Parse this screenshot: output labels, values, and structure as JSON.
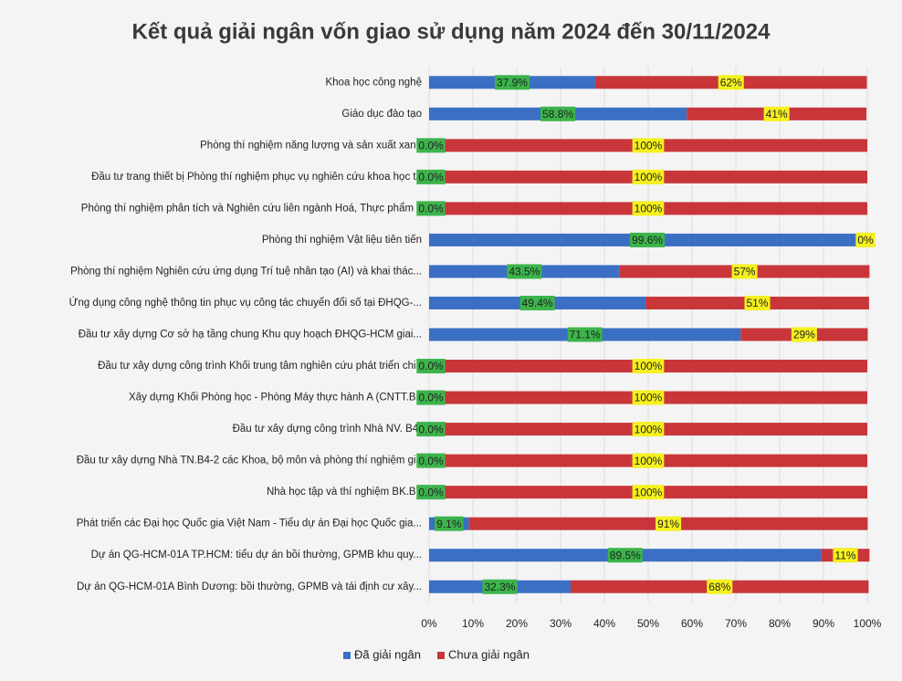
{
  "chart_data": {
    "type": "stacked_barh",
    "title": "Kết quả giải ngân vốn giao sử dụng năm 2024 đến 30/11/2024",
    "categories": [
      "Khoa học công nghệ",
      "Giáo dục đào tạo",
      "Phòng thí nghiệm năng lượng và sản xuất xanh",
      "Đầu tư trang thiết bị Phòng thí nghiệm phục vụ nghiên cứu khoa học ta",
      "Phòng thí nghiệm phân tích và Nghiên cứu liên ngành Hoá, Thực phẩm v",
      "Phòng thí nghiệm Vật liệu tiên tiến",
      "Phòng thí nghiệm Nghiên cứu ứng dụng Trí tuệ nhân tạo (AI) và khai thác...",
      "Ứng dụng công nghệ thông tin phục vụ công tác chuyển đổi số tại ĐHQG-...",
      "Đầu tư xây dựng Cơ sở hạ tầng chung Khu quy hoạch ĐHQG-HCM giai...",
      "Đầu tư xây dựng công trình Khối trung tâm nghiên cứu phát triển chin",
      "Xây dựng Khối Phòng học - Phòng Máy thực hành A (CNTT.B5",
      "Đầu tư xây dựng công trình Nhà NV. B4-",
      "Đầu tư xây dựng Nhà TN.B4-2 các Khoa, bộ môn và phòng thí nghiệm gia",
      "Nhà học tập và thí nghiệm BK.B7",
      "Phát triển các Đại học Quốc gia Việt Nam - Tiểu dự án Đại học Quốc gia...",
      "Dự án QG-HCM-01A TP.HCM: tiểu dự án bồi thường, GPMB khu quy...",
      "Dự án QG-HCM-01A Bình Dương: bồi thường, GPMB và tái định cư xây..."
    ],
    "series": [
      {
        "name": "Đã giải ngân",
        "color": "#3a6fc4",
        "label_background": "#3cb44b",
        "values": [
          37.9,
          58.8,
          0,
          0,
          0,
          99.6,
          43.5,
          49.4,
          71.1,
          0,
          0,
          0,
          0,
          0,
          9.1,
          89.5,
          32.3
        ],
        "value_labels": [
          "37.9%",
          "58.8%",
          "0.0%",
          "0.0%",
          "0.0%",
          "99.6%",
          "43.5%",
          "49.4%",
          "71.1%",
          "0.0%",
          "0.0%",
          "0.0%",
          "0.0%",
          "0.0%",
          "9.1%",
          "89.5%",
          "32.3%"
        ]
      },
      {
        "name": "Chưa giải ngân",
        "color": "#c8363a",
        "label_background": "#f5f01e",
        "values": [
          62,
          41,
          100,
          100,
          100,
          0,
          57,
          51,
          29,
          100,
          100,
          100,
          100,
          100,
          91,
          11,
          68
        ],
        "value_labels": [
          "62%",
          "41%",
          "100%",
          "100%",
          "100%",
          "0%",
          "57%",
          "51%",
          "29%",
          "100%",
          "100%",
          "100%",
          "100%",
          "100%",
          "91%",
          "11%",
          "68%"
        ]
      }
    ],
    "xlim": [
      0,
      100
    ],
    "xticks": [
      {
        "value": 0,
        "label": "0%"
      },
      {
        "value": 10,
        "label": "10%"
      },
      {
        "value": 20,
        "label": "20%"
      },
      {
        "value": 30,
        "label": "30%"
      },
      {
        "value": 40,
        "label": "40%"
      },
      {
        "value": 50,
        "label": "50%"
      },
      {
        "value": 60,
        "label": "60%"
      },
      {
        "value": 70,
        "label": "70%"
      },
      {
        "value": 80,
        "label": "80%"
      },
      {
        "value": 90,
        "label": "90%"
      },
      {
        "value": 100,
        "label": "100%"
      }
    ],
    "grid": true,
    "legend": "bottom"
  }
}
